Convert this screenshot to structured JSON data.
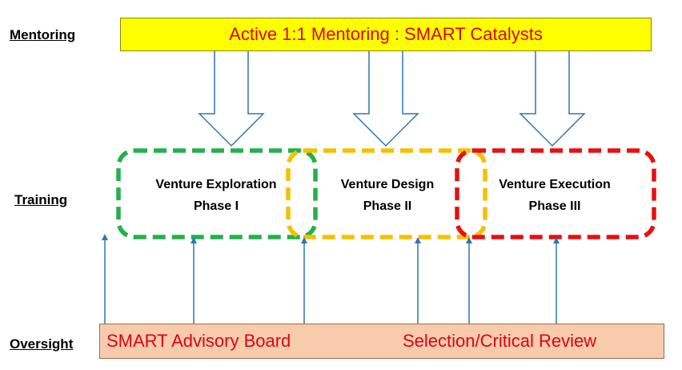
{
  "row_labels": {
    "mentoring": "Mentoring",
    "training": "Training",
    "oversight": "Oversight"
  },
  "mentoring_box": {
    "text": "Active 1:1 Mentoring : SMART Catalysts",
    "fill": "#ffff00",
    "text_color": "#e0001a"
  },
  "phases": [
    {
      "line1": "Venture Exploration",
      "line2": "Phase I",
      "border_color": "#22b14c"
    },
    {
      "line1": "Venture Design",
      "line2": "Phase II",
      "border_color": "#f5c000"
    },
    {
      "line1": "Venture Execution",
      "line2": "Phase III",
      "border_color": "#e81010"
    }
  ],
  "oversight_box": {
    "left_text": "SMART Advisory Board",
    "right_text": "Selection/Critical Review",
    "fill": "#f8cbad",
    "text_color": "#e0001a"
  },
  "arrow_color": "#2e75b6"
}
